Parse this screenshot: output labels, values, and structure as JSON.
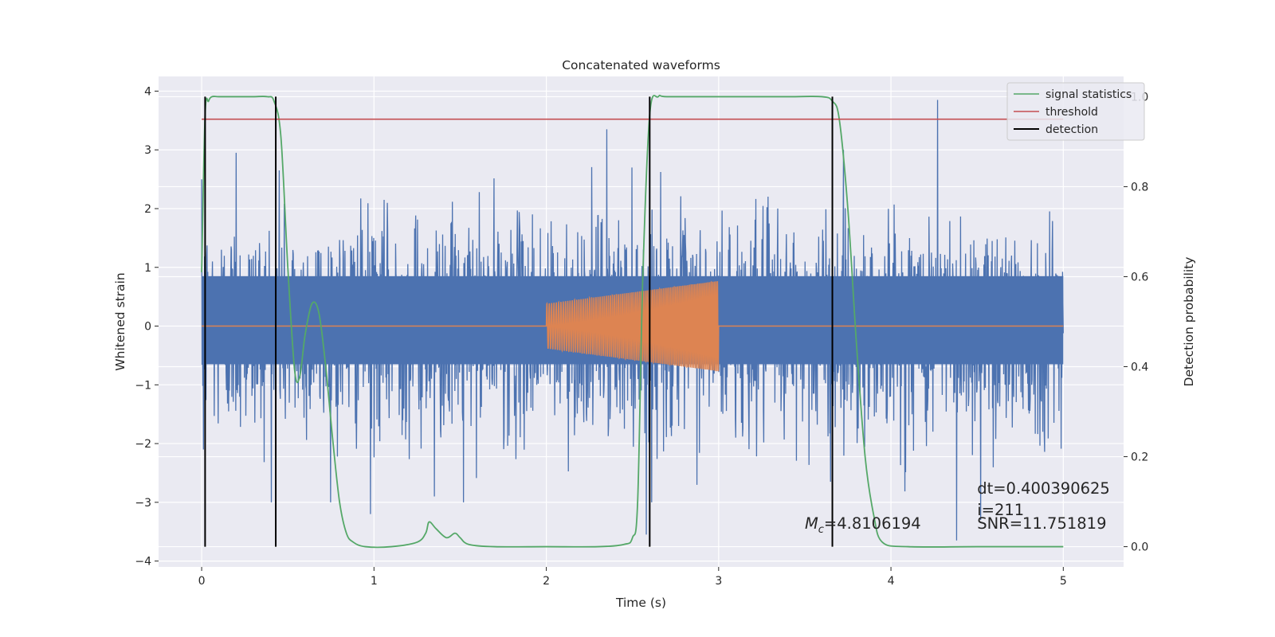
{
  "chart_data": {
    "type": "line",
    "title": "Concatenated waveforms",
    "xlabel": "Time (s)",
    "ylabel": "Whitened strain",
    "y2label": "Detection probability",
    "xlim": [
      -0.25,
      5.35
    ],
    "ylim": [
      -4.1,
      4.25
    ],
    "y2lim": [
      -0.045,
      1.045
    ],
    "xticks": [
      0,
      1,
      2,
      3,
      4,
      5
    ],
    "yticks": [
      -4,
      -3,
      -2,
      -1,
      0,
      1,
      2,
      3,
      4
    ],
    "y2ticks": [
      0.0,
      0.2,
      0.4,
      0.6,
      0.8,
      1.0
    ],
    "xtick_labels": [
      "0",
      "1",
      "2",
      "3",
      "4",
      "5"
    ],
    "ytick_labels": [
      "−4",
      "−3",
      "−2",
      "−1",
      "0",
      "1",
      "2",
      "3",
      "4"
    ],
    "y2tick_labels": [
      "0.0",
      "0.2",
      "0.4",
      "0.6",
      "0.8",
      "1.0"
    ],
    "grid": true,
    "legend_position": "top-right",
    "legend": [
      "signal statistics",
      "threshold",
      "detection"
    ],
    "colors": {
      "noise": "#4c72b0",
      "injection": "#dd8452",
      "signal_statistics": "#55a868",
      "threshold": "#c44e52",
      "detection": "#000000",
      "background": "#eaeaf2",
      "grid": "#ffffff"
    },
    "series": [
      {
        "name": "signal statistics",
        "axis": "right",
        "x": [
          0.0,
          0.02,
          0.04,
          0.06,
          0.1,
          0.2,
          0.3,
          0.38,
          0.42,
          0.46,
          0.5,
          0.54,
          0.57,
          0.6,
          0.64,
          0.68,
          0.72,
          0.76,
          0.8,
          0.84,
          0.88,
          0.95,
          1.1,
          1.25,
          1.3,
          1.32,
          1.36,
          1.42,
          1.47,
          1.5,
          1.55,
          1.7,
          2.0,
          2.3,
          2.45,
          2.5,
          2.53,
          2.56,
          2.6,
          2.65,
          2.7,
          3.0,
          3.4,
          3.6,
          3.66,
          3.7,
          3.75,
          3.8,
          3.85,
          3.9,
          3.95,
          4.1,
          4.5,
          5.0
        ],
        "y": [
          0.61,
          0.96,
          0.99,
          1.0,
          1.0,
          1.0,
          1.0,
          1.0,
          0.99,
          0.91,
          0.62,
          0.39,
          0.38,
          0.47,
          0.54,
          0.52,
          0.4,
          0.24,
          0.1,
          0.03,
          0.01,
          0.0,
          0.0,
          0.01,
          0.03,
          0.055,
          0.04,
          0.02,
          0.03,
          0.02,
          0.005,
          0.0,
          0.0,
          0.0,
          0.005,
          0.02,
          0.1,
          0.6,
          0.96,
          1.0,
          1.0,
          1.0,
          1.0,
          1.0,
          0.99,
          0.95,
          0.75,
          0.45,
          0.2,
          0.07,
          0.01,
          0.0,
          0.0,
          0.0
        ]
      },
      {
        "name": "threshold",
        "axis": "right",
        "x": [
          0,
          5
        ],
        "y": [
          0.95,
          0.95
        ]
      },
      {
        "name": "detection",
        "axis": "right",
        "type": "vlines",
        "x": [
          0.02,
          0.43,
          2.6,
          3.66
        ],
        "y_range": [
          0.0,
          1.0
        ]
      }
    ],
    "noise": {
      "axis": "left",
      "x_range": [
        0,
        5
      ],
      "dense_band": [
        -0.65,
        0.85
      ],
      "envelope": [
        -3.0,
        3.0
      ],
      "spikes": [
        {
          "x": 0.01,
          "y": 3.05
        },
        {
          "x": 0.01,
          "y": -2.1
        },
        {
          "x": 0.2,
          "y": 2.95
        },
        {
          "x": 0.45,
          "y": 2.65
        },
        {
          "x": 0.98,
          "y": -3.2
        },
        {
          "x": 1.35,
          "y": -2.9
        },
        {
          "x": 1.52,
          "y": -3.0
        },
        {
          "x": 2.35,
          "y": 3.35
        },
        {
          "x": 2.58,
          "y": 2.35
        },
        {
          "x": 2.58,
          "y": -3.55
        },
        {
          "x": 3.65,
          "y": -2.65
        },
        {
          "x": 4.27,
          "y": 3.85
        },
        {
          "x": 4.38,
          "y": -3.65
        },
        {
          "x": 4.52,
          "y": -3.3
        }
      ]
    },
    "injection": {
      "axis": "left",
      "name": "",
      "x_range": [
        2.0,
        3.0
      ],
      "amplitude_start": 0.38,
      "amplitude_end": 0.77,
      "cycles": 72
    },
    "annotations": [
      {
        "text": "dt=0.400390625",
        "x": 4.5,
        "y": -2.85
      },
      {
        "text": " i=211",
        "x": 4.5,
        "y": -3.22
      },
      {
        "text": "SNR=11.751819",
        "x": 4.5,
        "y": -3.45
      },
      {
        "text": "M",
        "subscript": "c",
        "rest": "=4.8106194",
        "x": 3.5,
        "y": -3.45
      }
    ]
  }
}
